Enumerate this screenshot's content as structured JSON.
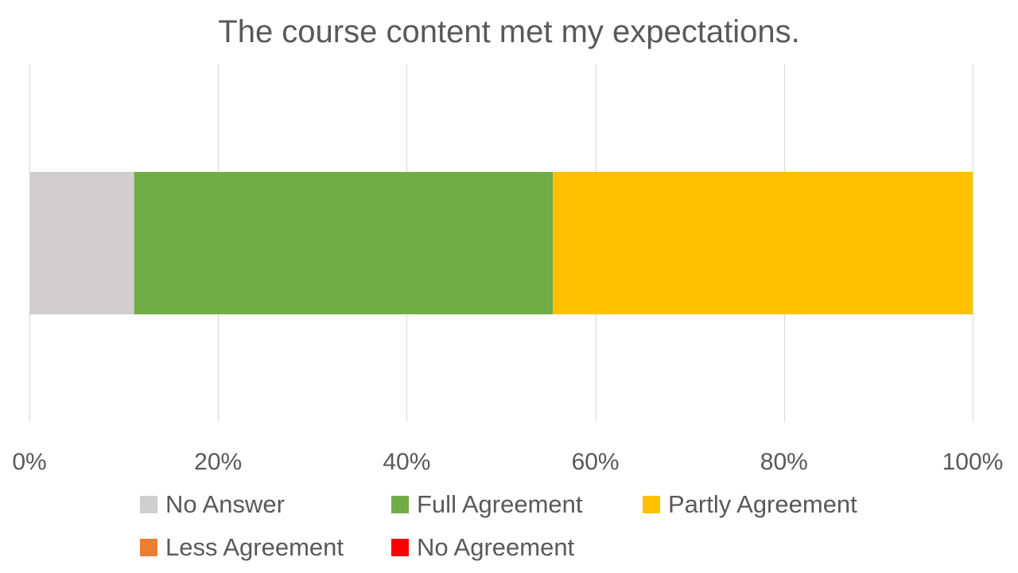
{
  "chart_data": {
    "type": "bar",
    "orientation": "horizontal",
    "stacking": "percent",
    "title": "The course content met my expectations.",
    "xlim": [
      0,
      100
    ],
    "x_ticks": [
      0,
      20,
      40,
      60,
      80,
      100
    ],
    "x_tick_labels": [
      "0%",
      "20%",
      "40%",
      "60%",
      "80%",
      "100%"
    ],
    "grid": true,
    "legend_position": "bottom",
    "series": [
      {
        "name": "No Answer",
        "value": 11.1,
        "color": "#d0cece"
      },
      {
        "name": "Full Agreement",
        "value": 44.4,
        "color": "#70ad47"
      },
      {
        "name": "Partly Agreement",
        "value": 44.5,
        "color": "#ffc000"
      },
      {
        "name": "Less Agreement",
        "value": 0,
        "color": "#ed7d31"
      },
      {
        "name": "No Agreement",
        "value": 0,
        "color": "#ff0000"
      }
    ]
  }
}
